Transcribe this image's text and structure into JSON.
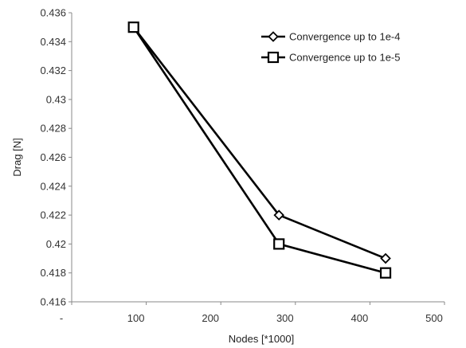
{
  "chart_data": {
    "type": "line",
    "title": "",
    "xlabel": "Nodes [*1000]",
    "ylabel": "Drag [N]",
    "xlim": [
      0,
      500
    ],
    "ylim": [
      0.416,
      0.436
    ],
    "x_ticks": [
      {
        "value": 0,
        "label": "-"
      },
      {
        "value": 100,
        "label": "100"
      },
      {
        "value": 200,
        "label": "200"
      },
      {
        "value": 300,
        "label": "300"
      },
      {
        "value": 400,
        "label": "400"
      },
      {
        "value": 500,
        "label": "500"
      }
    ],
    "y_ticks": [
      {
        "value": 0.416,
        "label": "0.416"
      },
      {
        "value": 0.418,
        "label": "0.418"
      },
      {
        "value": 0.42,
        "label": "0.42"
      },
      {
        "value": 0.422,
        "label": "0.422"
      },
      {
        "value": 0.424,
        "label": "0.424"
      },
      {
        "value": 0.426,
        "label": "0.426"
      },
      {
        "value": 0.428,
        "label": "0.428"
      },
      {
        "value": 0.43,
        "label": "0.43"
      },
      {
        "value": 0.432,
        "label": "0.432"
      },
      {
        "value": 0.434,
        "label": "0.434"
      },
      {
        "value": 0.436,
        "label": "0.436"
      }
    ],
    "grid": false,
    "legend_position": "top-right",
    "series": [
      {
        "name": "Convergence up to 1e-4",
        "marker": "diamond",
        "color": "#000000",
        "x": [
          83,
          278,
          421
        ],
        "y": [
          0.435,
          0.422,
          0.419
        ]
      },
      {
        "name": "Convergence up to 1e-5",
        "marker": "square",
        "color": "#000000",
        "x": [
          83,
          278,
          421
        ],
        "y": [
          0.435,
          0.42,
          0.418
        ]
      }
    ]
  }
}
